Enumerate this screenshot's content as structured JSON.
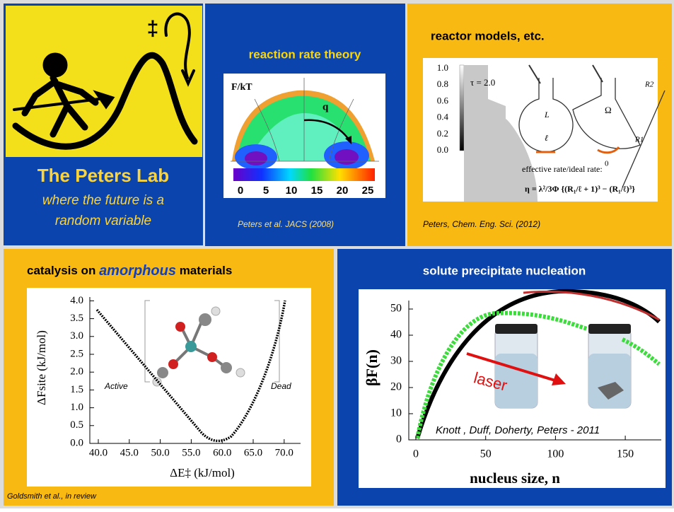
{
  "lab": {
    "symbol": "‡",
    "title": "The Peters Lab",
    "tagline": [
      "where the future is a",
      "random variable"
    ]
  },
  "rate_theory": {
    "title": "reaction rate theory",
    "citation": "Peters et al. JACS  (2008)",
    "figure": {
      "y_label": "F/kT",
      "arrow_label": "q",
      "colorbar_ticks": [
        "0",
        "5",
        "10",
        "15",
        "20",
        "25"
      ]
    }
  },
  "reactor": {
    "title": "reactor models, etc.",
    "citation": "Peters, Chem. Eng. Sci. (2012)",
    "figure": {
      "colorbar_ticks": [
        "0.0",
        "0.2",
        "0.4",
        "0.6",
        "0.8",
        "1.0"
      ],
      "tau": "τ = 2.0",
      "labels": [
        "L",
        "ℓ",
        "Ω",
        "R2",
        "R1",
        "0"
      ],
      "caption": "effective rate/ideal rate:",
      "equation": "η = λ²/3Φ {(R₁/ℓ + 1)³ − (R₁/ℓ)³}"
    }
  },
  "catalysis": {
    "title": [
      "catalysis on ",
      "amorphous",
      " materials"
    ],
    "citation": "Goldsmith et al., in review",
    "figure": {
      "y_label": "ΔFsite (kJ/mol)",
      "x_label": "ΔE‡ (kJ/mol)",
      "yticks": [
        "0.0",
        "0.5",
        "1.0",
        "1.5",
        "2.0",
        "2.5",
        "3.0",
        "3.5",
        "4.0"
      ],
      "xticks": [
        "40.0",
        "45.0",
        "50.0",
        "55.0",
        "60.0",
        "65.0",
        "70.0"
      ],
      "annotations": [
        "Active",
        "Dead"
      ]
    }
  },
  "nucleation": {
    "title": "solute precipitate nucleation",
    "figure": {
      "y_label": "βF(n)",
      "x_label": "nucleus size, n",
      "yticks": [
        "0",
        "10",
        "20",
        "30",
        "40",
        "50"
      ],
      "xticks": [
        "0",
        "50",
        "100",
        "150"
      ],
      "arrow_label": "laser",
      "credit": "Knott , Duff, Doherty, Peters  - 2011"
    }
  }
}
